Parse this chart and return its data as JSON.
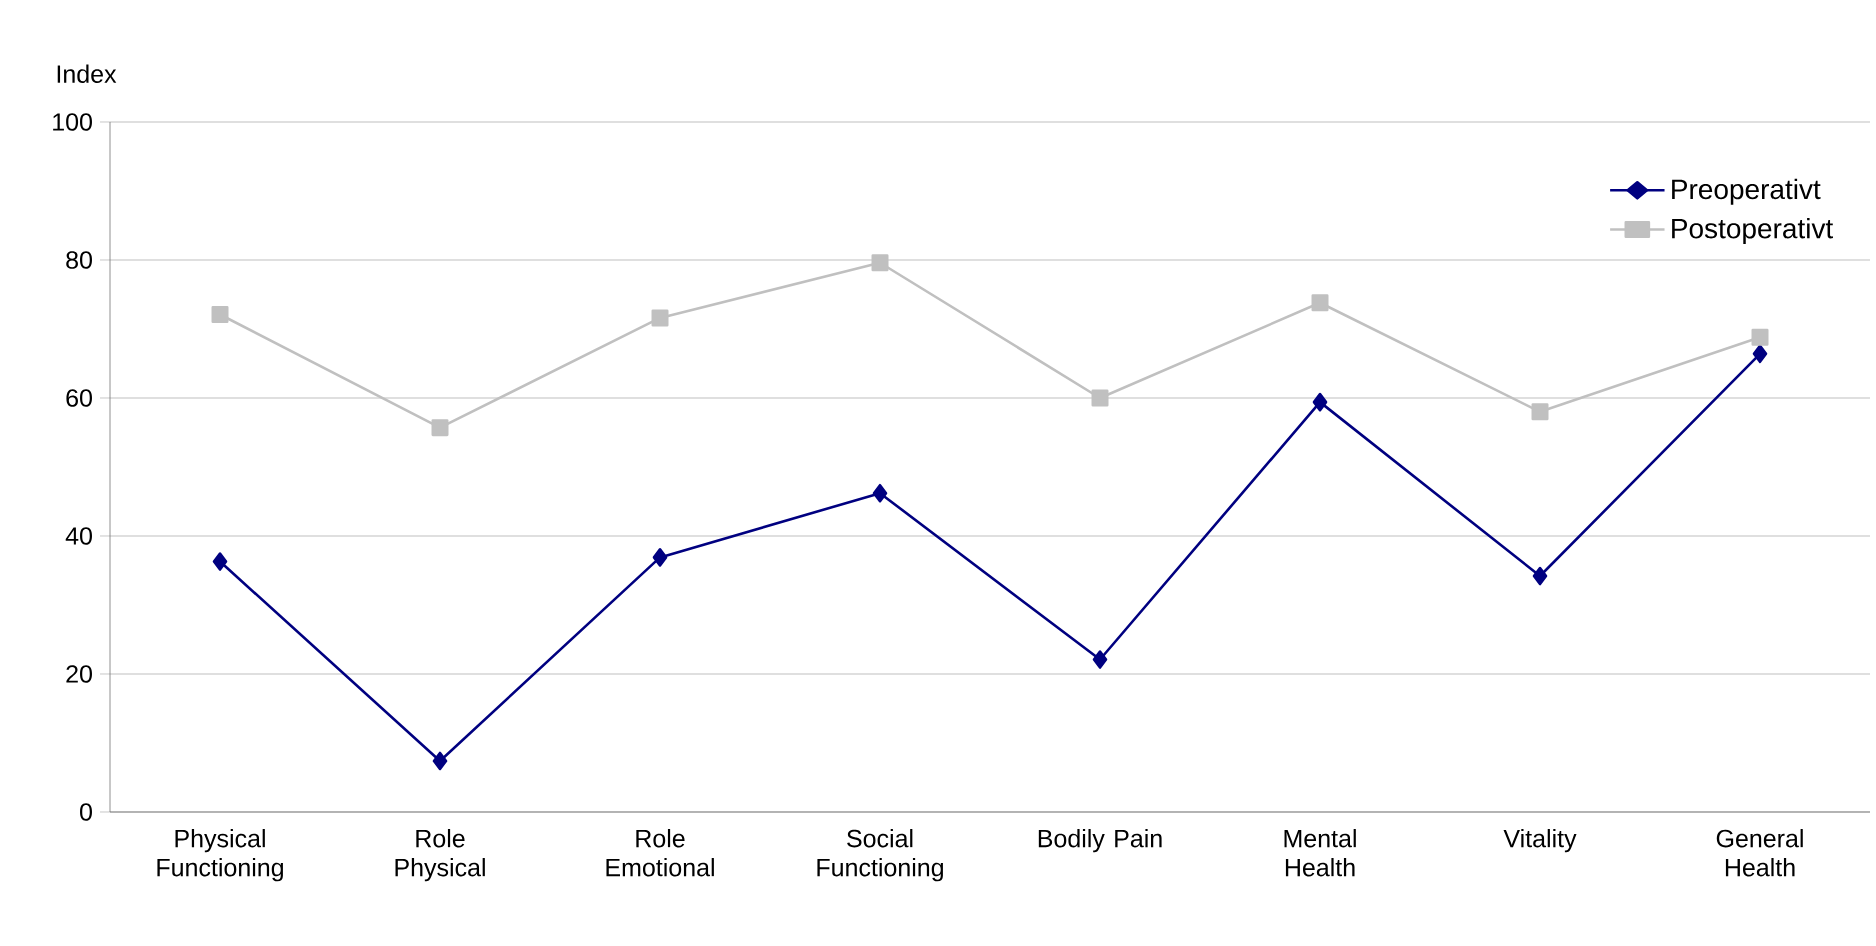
{
  "chart_data": {
    "type": "line",
    "ylabel": "Index",
    "categories": [
      "Physical Functioning",
      "Role Physical",
      "Role Emotional",
      "Social Functioning",
      "Bodily Pain",
      "Mental Health",
      "Vitality",
      "General Health"
    ],
    "series": [
      {
        "name": "Preoperativt",
        "color": "#000080",
        "marker": "diamond",
        "values": [
          36.3,
          7.4,
          36.9,
          46.2,
          22.1,
          59.4,
          34.2,
          66.4
        ]
      },
      {
        "name": "Postoperativt",
        "color": "#c0c0c0",
        "marker": "square",
        "values": [
          72.1,
          55.7,
          71.6,
          79.6,
          60.0,
          73.8,
          58.0,
          68.8
        ]
      }
    ],
    "ylim": [
      0,
      100
    ],
    "yticks": [
      0,
      20,
      40,
      60,
      80,
      100
    ],
    "grid": "y",
    "legend": "top right"
  }
}
